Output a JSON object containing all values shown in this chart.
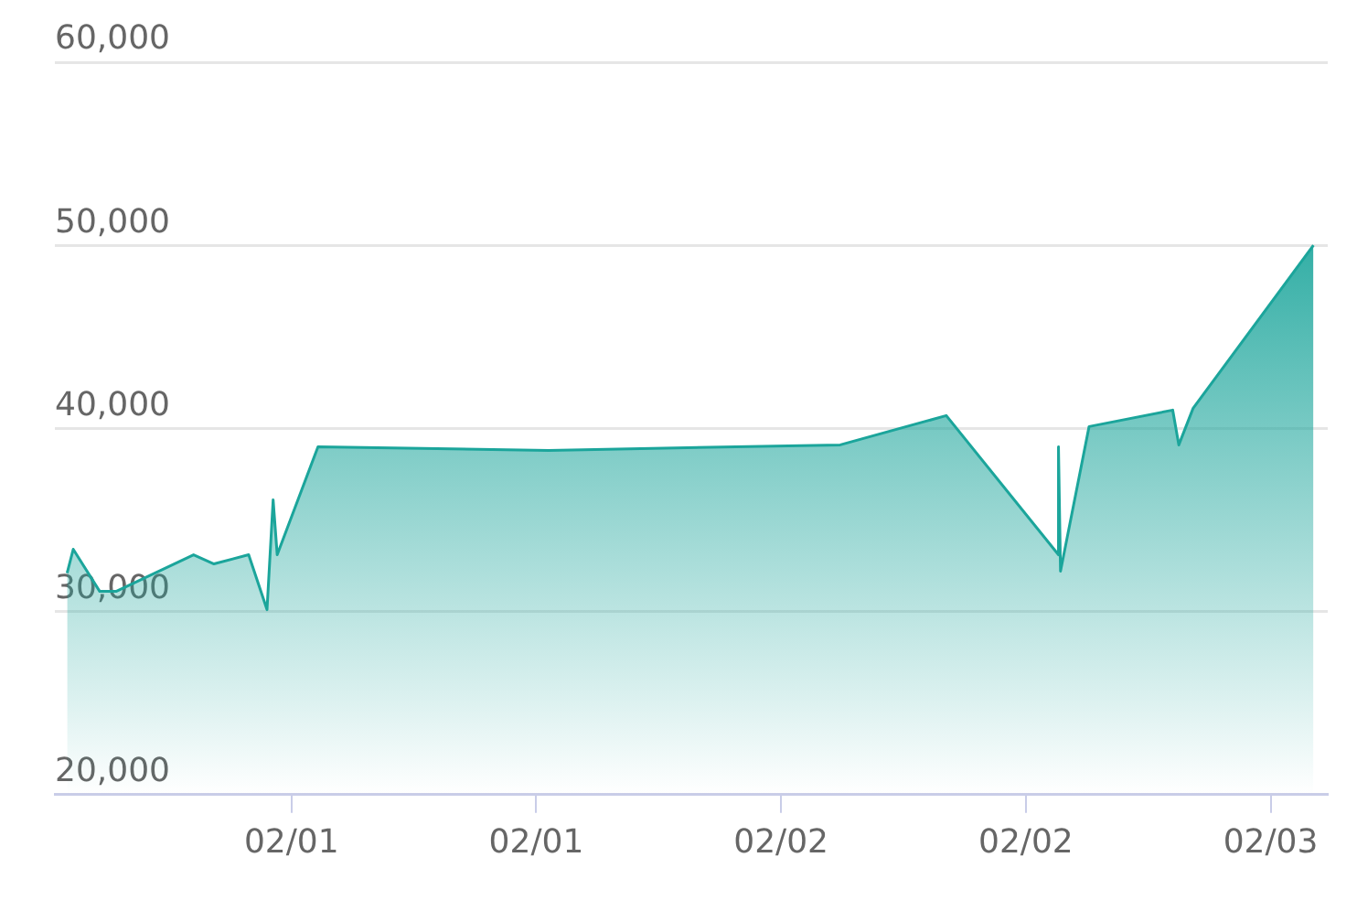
{
  "chart_data": {
    "type": "area",
    "x": [
      "--01-31T13:00",
      "--01-31T13:18",
      "--01-31T14:36",
      "--01-31T15:24",
      "--01-31T19:12",
      "--01-31T20:12",
      "--01-31T21:54",
      "--01-31T22:48",
      "--01-31T23:06",
      "--01-31T23:18",
      "--02-01T01:18",
      "--02-01T12:36",
      "--02-02T02:54",
      "--02-02T08:06",
      "--02-02T13:36",
      "--02-02T13:36",
      "--02-02T13:42",
      "--02-02T15:06",
      "--02-02T19:12",
      "--02-02T19:30",
      "--02-02T20:12",
      "--02-03T02:06"
    ],
    "series": [
      {
        "color": "#1ba59b",
        "values": [
          32100,
          33400,
          31100,
          31100,
          33100,
          32600,
          33100,
          30100,
          36100,
          33100,
          39000,
          38800,
          39100,
          40700,
          33100,
          39000,
          32200,
          40100,
          41000,
          39100,
          41100,
          50000
        ]
      }
    ],
    "xlim": [
      "--01-31T12:24",
      "--02-03T02:48"
    ],
    "xticks": [
      {
        "value": "--02-01T00:00",
        "label": "02/01"
      },
      {
        "value": "--02-01T12:00",
        "label": "02/01"
      },
      {
        "value": "--02-02T00:00",
        "label": "02/02"
      },
      {
        "value": "--02-02T12:00",
        "label": "02/02"
      },
      {
        "value": "--02-03T00:00",
        "label": "02/03"
      }
    ],
    "ylim": [
      20000,
      60000
    ],
    "yticks": [
      {
        "value": 20000,
        "label": "20,000"
      },
      {
        "value": 30000,
        "label": "30,000"
      },
      {
        "value": 40000,
        "label": "40,000"
      },
      {
        "value": 50000,
        "label": "50,000"
      },
      {
        "value": 60000,
        "label": "60,000"
      }
    ],
    "grid": "y",
    "legend": false,
    "marker": "none",
    "line_style": "solid"
  }
}
